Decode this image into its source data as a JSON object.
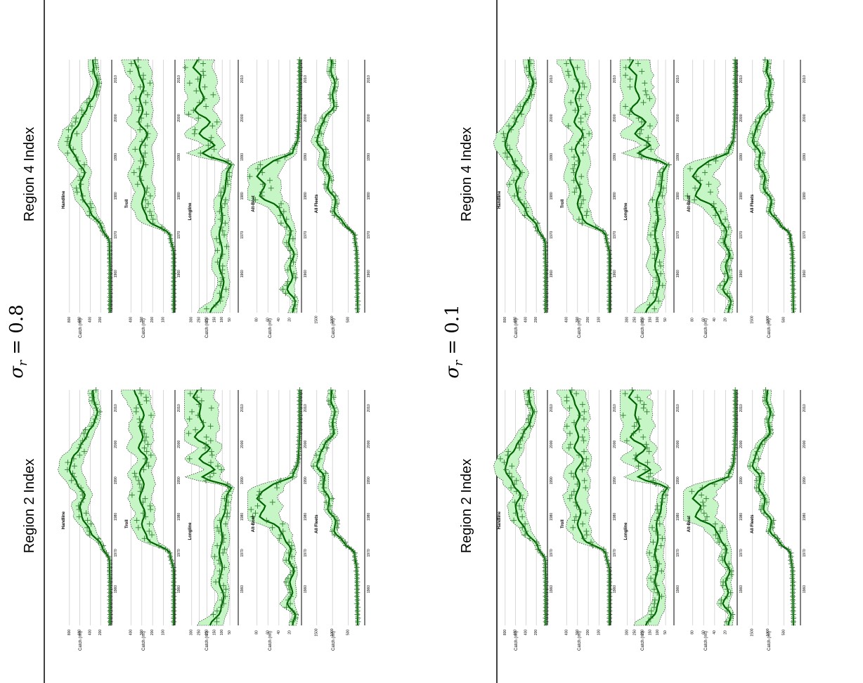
{
  "figure": {
    "sigma_labels": [
      {
        "symbol": "σ",
        "sub": "r",
        "eq": "= 0.8"
      },
      {
        "symbol": "σ",
        "sub": "r",
        "eq": "= 0.1"
      }
    ],
    "panel_titles": [
      "Region 2 Index",
      "Region 4 Index",
      "Region 2 Index",
      "Region 4 Index"
    ],
    "y_axis_label": "Catch (mt)",
    "colors": {
      "band_fill": "#c6f5c6",
      "band_edge": "#111111",
      "line": "#006400",
      "marker": "#2e7d2e",
      "grid": "#cfcfcf",
      "axis": "#000000"
    }
  },
  "chart_data": {
    "type": "line",
    "x_range": [
      1950,
      2015
    ],
    "x_ticks": [
      "1960",
      "1970",
      "1980",
      "1990",
      "2000",
      "2010"
    ],
    "grid": true,
    "orientation": "rotated 90° counter-clockwise; years run up the page",
    "panels": [
      {
        "id": "sigma08_region2",
        "title": "Region 2 Index",
        "sigma": "0.8"
      },
      {
        "id": "sigma08_region4",
        "title": "Region 4 Index",
        "sigma": "0.8"
      },
      {
        "id": "sigma01_region2",
        "title": "Region 2 Index",
        "sigma": "0.1"
      },
      {
        "id": "sigma01_region4",
        "title": "Region 4 Index",
        "sigma": "0.1"
      }
    ],
    "fleets": [
      {
        "name": "Handline",
        "ylim": [
          0,
          1000
        ],
        "yticks": [
          "200",
          "400",
          "600",
          "800"
        ],
        "knots": [
          [
            1950,
            20
          ],
          [
            1960,
            20
          ],
          [
            1968,
            30
          ],
          [
            1972,
            180
          ],
          [
            1976,
            400
          ],
          [
            1980,
            560
          ],
          [
            1983,
            600
          ],
          [
            1986,
            500
          ],
          [
            1989,
            650
          ],
          [
            1993,
            800
          ],
          [
            1996,
            750
          ],
          [
            1999,
            600
          ],
          [
            2003,
            450
          ],
          [
            2006,
            320
          ],
          [
            2009,
            260
          ],
          [
            2012,
            330
          ],
          [
            2015,
            350
          ]
        ],
        "band": 0.28,
        "label_year": 1979,
        "label_pos": 0.88
      },
      {
        "name": "Troll",
        "ylim": [
          0,
          480
        ],
        "yticks": [
          "100",
          "200",
          "300",
          "400"
        ],
        "knots": [
          [
            1950,
            5
          ],
          [
            1965,
            5
          ],
          [
            1970,
            40
          ],
          [
            1974,
            250
          ],
          [
            1978,
            300
          ],
          [
            1981,
            270
          ],
          [
            1985,
            320
          ],
          [
            1989,
            280
          ],
          [
            1992,
            320
          ],
          [
            1996,
            250
          ],
          [
            1999,
            330
          ],
          [
            2002,
            290
          ],
          [
            2005,
            320
          ],
          [
            2008,
            280
          ],
          [
            2012,
            330
          ],
          [
            2015,
            370
          ]
        ],
        "band": 0.35,
        "label_year": 1978,
        "label_pos": 0.88
      },
      {
        "name": "Longline",
        "ylim": [
          0,
          340
        ],
        "yticks": [
          "50",
          "100",
          "150",
          "200",
          "250",
          "300"
        ],
        "knots": [
          [
            1950,
            180
          ],
          [
            1954,
            110
          ],
          [
            1958,
            90
          ],
          [
            1962,
            120
          ],
          [
            1966,
            100
          ],
          [
            1970,
            120
          ],
          [
            1974,
            100
          ],
          [
            1978,
            110
          ],
          [
            1982,
            80
          ],
          [
            1986,
            70
          ],
          [
            1988,
            40
          ],
          [
            1991,
            230
          ],
          [
            1993,
            150
          ],
          [
            1996,
            250
          ],
          [
            1999,
            180
          ],
          [
            2002,
            280
          ],
          [
            2005,
            220
          ],
          [
            2008,
            250
          ],
          [
            2011,
            240
          ],
          [
            2013,
            290
          ],
          [
            2015,
            260
          ]
        ],
        "band": 0.45,
        "label_year": 1976,
        "label_pos": 0.88
      },
      {
        "name": "Alt-Boat",
        "ylim": [
          0,
          95
        ],
        "yticks": [
          "20",
          "40",
          "60",
          "80"
        ],
        "knots": [
          [
            1950,
            15
          ],
          [
            1953,
            10
          ],
          [
            1956,
            25
          ],
          [
            1959,
            15
          ],
          [
            1962,
            20
          ],
          [
            1965,
            12
          ],
          [
            1968,
            22
          ],
          [
            1971,
            18
          ],
          [
            1974,
            30
          ],
          [
            1977,
            40
          ],
          [
            1980,
            75
          ],
          [
            1983,
            65
          ],
          [
            1985,
            80
          ],
          [
            1987,
            70
          ],
          [
            1989,
            50
          ],
          [
            1991,
            15
          ],
          [
            1995,
            5
          ],
          [
            2000,
            3
          ],
          [
            2005,
            2
          ],
          [
            2010,
            2
          ],
          [
            2015,
            2
          ]
        ],
        "band": 0.5,
        "label_year": 1978,
        "label_pos": 0.88
      },
      {
        "name": "All Fleets",
        "ylim": [
          0,
          1650
        ],
        "yticks": [
          "500",
          "1000",
          "1500"
        ],
        "knots": [
          [
            1950,
            200
          ],
          [
            1955,
            210
          ],
          [
            1960,
            220
          ],
          [
            1965,
            230
          ],
          [
            1970,
            300
          ],
          [
            1973,
            650
          ],
          [
            1976,
            950
          ],
          [
            1979,
            900
          ],
          [
            1982,
            1150
          ],
          [
            1985,
            1100
          ],
          [
            1988,
            1300
          ],
          [
            1991,
            1250
          ],
          [
            1994,
            1500
          ],
          [
            1997,
            1400
          ],
          [
            2000,
            1250
          ],
          [
            2003,
            950
          ],
          [
            2006,
            1000
          ],
          [
            2009,
            920
          ],
          [
            2012,
            1050
          ],
          [
            2015,
            1020
          ]
        ],
        "band": 0.12,
        "label_year": 1978,
        "label_pos": 0.88
      }
    ],
    "x_label_display": "1960  1970  1980  1990  2000  2010"
  }
}
